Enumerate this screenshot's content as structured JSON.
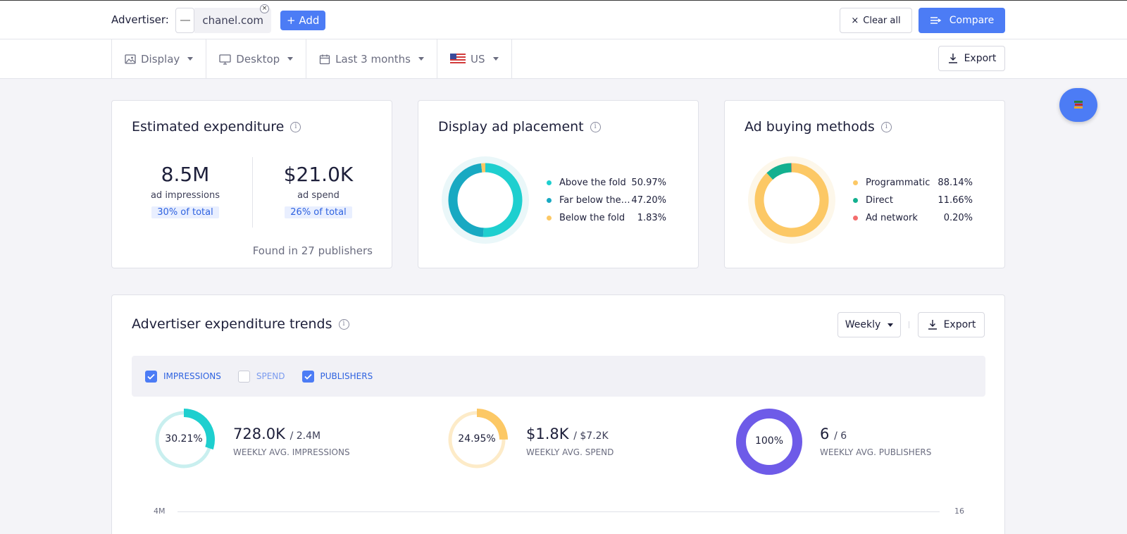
{
  "topbar": {
    "advertiser_label": "Advertiser:",
    "advertiser_name": "chanel.com",
    "add_label": "+ Add",
    "clear_label": "Clear all",
    "compare_label": "Compare"
  },
  "filters": {
    "items": [
      {
        "label": "Display",
        "icon": "image-icon"
      },
      {
        "label": "Desktop",
        "icon": "monitor-icon"
      },
      {
        "label": "Last 3 months",
        "icon": "calendar-icon"
      },
      {
        "label": "US",
        "icon": "us-flag-icon"
      }
    ],
    "export_label": "Export"
  },
  "expenditure": {
    "title": "Estimated expenditure",
    "impressions_value": "8.5M",
    "impressions_label": "ad impressions",
    "impressions_share": "30% of total",
    "spend_value": "$21.0K",
    "spend_label": "ad spend",
    "spend_share": "26% of total",
    "found": "Found in 27 publishers"
  },
  "placement": {
    "title": "Display ad placement",
    "items": [
      {
        "label": "Above the fold",
        "value": "50.97%",
        "pct": 50.97,
        "color": "#1ecfcf"
      },
      {
        "label": "Far below the fold",
        "value": "47.20%",
        "pct": 47.2,
        "color": "#18a9c2"
      },
      {
        "label": "Below the fold",
        "value": "1.83%",
        "pct": 1.83,
        "color": "#fcc865"
      }
    ]
  },
  "buying": {
    "title": "Ad buying methods",
    "items": [
      {
        "label": "Programmatic",
        "value": "88.14%",
        "pct": 88.14,
        "color": "#fcc865"
      },
      {
        "label": "Direct",
        "value": "11.66%",
        "pct": 11.66,
        "color": "#13b08f"
      },
      {
        "label": "Ad network",
        "value": "0.20%",
        "pct": 0.2,
        "color": "#f36d6d"
      }
    ]
  },
  "trends": {
    "title": "Advertiser expenditure trends",
    "period_label": "Weekly",
    "export_label": "Export",
    "toggles": [
      {
        "label": "IMPRESSIONS",
        "checked": true
      },
      {
        "label": "SPEND",
        "checked": false
      },
      {
        "label": "PUBLISHERS",
        "checked": true
      }
    ],
    "kpis": [
      {
        "pct_label": "30.21%",
        "pct": 30.21,
        "value": "728.0K",
        "total": "/ 2.4M",
        "label": "WEEKLY AVG. IMPRESSIONS",
        "color": "#1ecfcf",
        "track": "#c9efef"
      },
      {
        "pct_label": "24.95%",
        "pct": 24.95,
        "value": "$1.8K",
        "total": "/ $7.2K",
        "label": "WEEKLY AVG. SPEND",
        "color": "#fcc865",
        "track": "#fdebc8"
      },
      {
        "pct_label": "100%",
        "pct": 100,
        "value": "6",
        "total": "/ 6",
        "label": "WEEKLY AVG. PUBLISHERS",
        "color": "#6e5be8",
        "track": "#ddd8fa"
      }
    ],
    "axis_left": "4M",
    "axis_right": "16"
  }
}
